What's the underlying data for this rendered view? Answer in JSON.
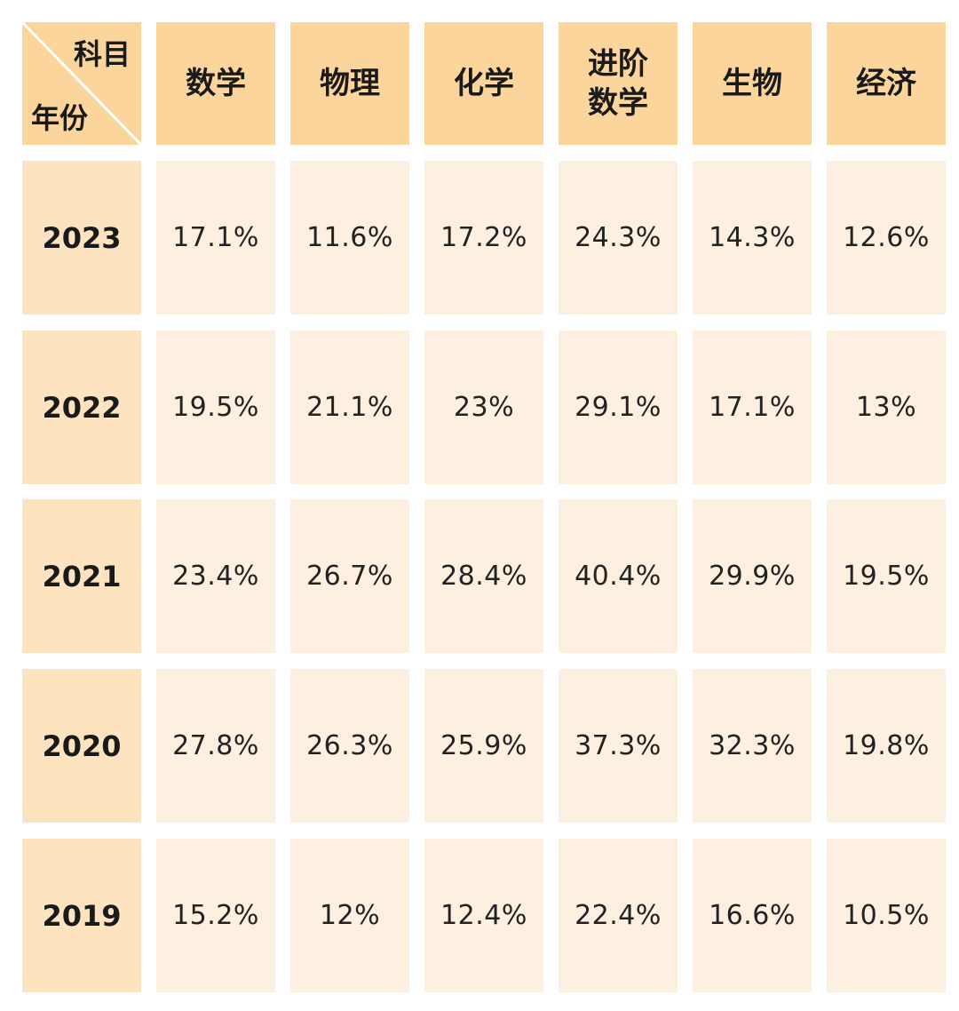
{
  "chart_data": {
    "type": "table",
    "corner": {
      "column_label": "科目",
      "row_label": "年份"
    },
    "columns": [
      "数学",
      "物理",
      "化学",
      "进阶\n数学",
      "生物",
      "经济"
    ],
    "rows": [
      {
        "year": "2023",
        "values": [
          "17.1%",
          "11.6%",
          "17.2%",
          "24.3%",
          "14.3%",
          "12.6%"
        ]
      },
      {
        "year": "2022",
        "values": [
          "19.5%",
          "21.1%",
          "23%",
          "29.1%",
          "17.1%",
          "13%"
        ]
      },
      {
        "year": "2021",
        "values": [
          "23.4%",
          "26.7%",
          "28.4%",
          "40.4%",
          "29.9%",
          "19.5%"
        ]
      },
      {
        "year": "2020",
        "values": [
          "27.8%",
          "26.3%",
          "25.9%",
          "37.3%",
          "32.3%",
          "19.8%"
        ]
      },
      {
        "year": "2019",
        "values": [
          "15.2%",
          "12%",
          "12.4%",
          "22.4%",
          "16.6%",
          "10.5%"
        ]
      }
    ]
  },
  "colors": {
    "header_bg": "#fcd59c",
    "year_bg": "#fde3c0",
    "value_bg": "#fef0e0",
    "text": "#1a1a1a"
  }
}
